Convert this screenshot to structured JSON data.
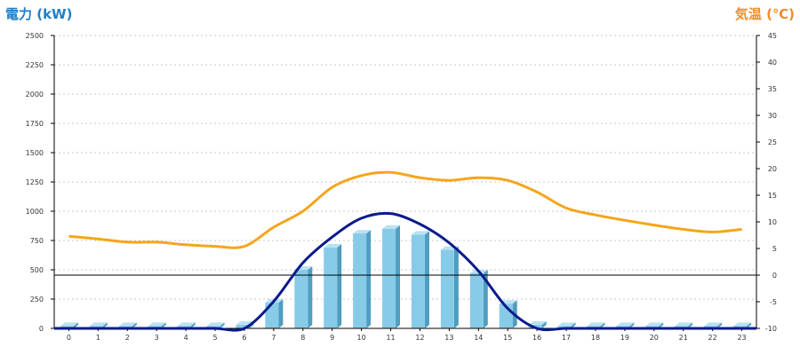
{
  "colors": {
    "power_axis_title": "#1f7fc4",
    "temp_axis_title": "#f08c2a",
    "bar_front": "#88cbe9",
    "bar_side": "#4f9dbf",
    "bar_top": "#b9e2f4",
    "power_line": "#0a1a8c",
    "temp_line": "#f5a51c",
    "grid": "#c8c8c8",
    "axis": "#000000"
  },
  "chart_data": {
    "type": "bar",
    "title": "",
    "left_axis": {
      "label": "電力 (kW)",
      "range": [
        0,
        2500
      ],
      "ticks": [
        0,
        250,
        500,
        750,
        1000,
        1250,
        1500,
        1750,
        2000,
        2250,
        2500
      ]
    },
    "right_axis": {
      "label": "気温 (℃)",
      "range": [
        -10,
        45
      ],
      "ticks": [
        -10,
        -5,
        0,
        5,
        10,
        15,
        20,
        25,
        30,
        35,
        40,
        45
      ]
    },
    "categories": [
      "0",
      "1",
      "2",
      "3",
      "4",
      "5",
      "6",
      "7",
      "8",
      "9",
      "10",
      "11",
      "12",
      "13",
      "14",
      "15",
      "16",
      "17",
      "18",
      "19",
      "20",
      "21",
      "22",
      "23"
    ],
    "grid": true,
    "legend": "none",
    "series": [
      {
        "kind": "bar",
        "axis": "left",
        "values": [
          20,
          20,
          20,
          20,
          20,
          20,
          30,
          220,
          500,
          690,
          810,
          850,
          800,
          670,
          470,
          210,
          30,
          20,
          20,
          20,
          20,
          20,
          20,
          20
        ]
      },
      {
        "kind": "line",
        "axis": "left",
        "values": [
          0,
          0,
          0,
          0,
          0,
          0,
          0,
          230,
          560,
          780,
          940,
          980,
          890,
          730,
          490,
          170,
          0,
          0,
          0,
          0,
          0,
          0,
          0,
          0
        ]
      },
      {
        "kind": "line",
        "axis": "right",
        "values": [
          7.3,
          6.8,
          6.2,
          6.2,
          5.7,
          5.4,
          5.4,
          9.0,
          12.0,
          16.5,
          18.7,
          19.3,
          18.3,
          17.8,
          18.3,
          17.8,
          15.6,
          12.6,
          11.3,
          10.3,
          9.4,
          8.6,
          8.1,
          8.6
        ]
      }
    ]
  }
}
